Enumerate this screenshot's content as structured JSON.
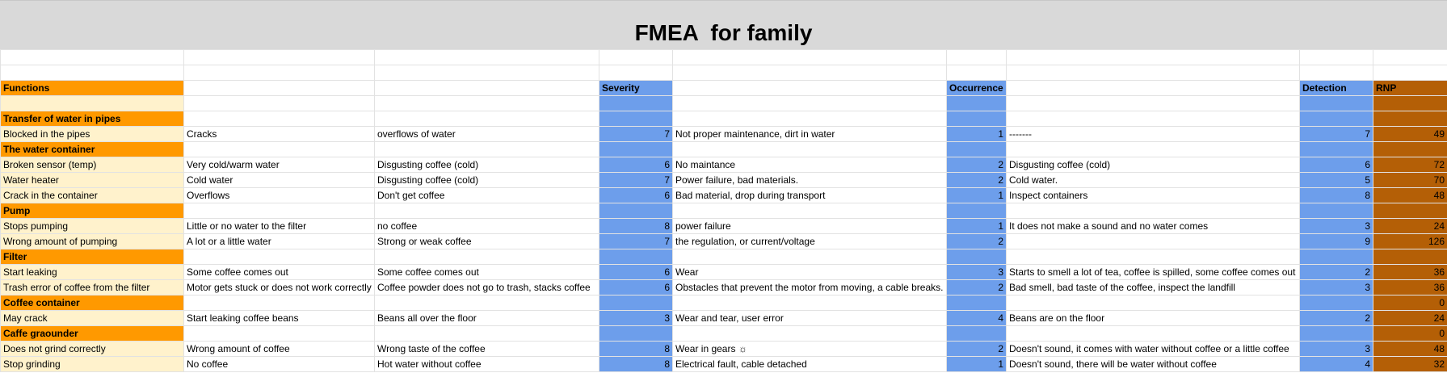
{
  "title": "FMEA  for family",
  "header": {
    "functions": "Functions",
    "severity": "Severity",
    "occurrence": "Occurrence",
    "detection": "Detection",
    "rnp": "RNP"
  },
  "rows": [
    {
      "type": "section",
      "function": "Transfer of water in pipes",
      "rnp": ""
    },
    {
      "type": "item",
      "function": "Blocked in the pipes",
      "failure": "Cracks",
      "effect": "overflows of water",
      "severity": "7",
      "cause": "Not proper maintenance, dirt in water",
      "occurrence": "1",
      "detection_method": "-------",
      "detection": "7",
      "rnp": "49"
    },
    {
      "type": "section",
      "function": "The water container",
      "rnp": ""
    },
    {
      "type": "item",
      "function": "Broken sensor (temp)",
      "failure": "Very cold/warm water",
      "effect": "Disgusting coffee (cold)",
      "severity": "6",
      "cause": "No maintance",
      "occurrence": "2",
      "detection_method": "Disgusting coffee (cold)",
      "detection": "6",
      "rnp": "72"
    },
    {
      "type": "item",
      "function": "Water heater",
      "failure": "Cold water",
      "effect": "Disgusting coffee (cold)",
      "severity": "7",
      "cause": "Power failure, bad materials.",
      "occurrence": "2",
      "detection_method": "Cold water.",
      "detection": "5",
      "rnp": "70"
    },
    {
      "type": "item",
      "function": "Crack in the container",
      "failure": "Overflows",
      "effect": "Don't get coffee",
      "severity": "6",
      "cause": "Bad material, drop during transport",
      "occurrence": "1",
      "detection_method": "Inspect containers",
      "detection": "8",
      "rnp": "48"
    },
    {
      "type": "section",
      "function": "Pump",
      "rnp": ""
    },
    {
      "type": "item",
      "function": "Stops pumping",
      "failure": "Little or no water to the filter",
      "effect": "no coffee",
      "severity": "8",
      "cause": "power failure",
      "occurrence": "1",
      "detection_method": "It does not make a sound and no water comes",
      "detection": "3",
      "rnp": "24"
    },
    {
      "type": "item",
      "function": "Wrong amount of pumping",
      "failure": "A lot or a little water",
      "effect": "Strong or weak coffee",
      "severity": "7",
      "cause": "the regulation, or current/voltage",
      "occurrence": "2",
      "detection_method": "",
      "detection": "9",
      "rnp": "126"
    },
    {
      "type": "section",
      "function": "Filter",
      "rnp": ""
    },
    {
      "type": "item",
      "function": "Start leaking",
      "failure": "Some coffee comes out",
      "effect": "Some coffee comes out",
      "severity": "6",
      "cause": "Wear",
      "occurrence": "3",
      "detection_method": "Starts to smell a lot of tea, coffee is spilled, some coffee comes out",
      "detection": "2",
      "rnp": "36"
    },
    {
      "type": "item",
      "function": "Trash error of coffee from the filter",
      "failure": "Motor gets stuck or does not work correctly",
      "effect": "Coffee powder does not go to trash, stacks coffee",
      "severity": "6",
      "cause": "Obstacles that prevent the motor from moving, a cable breaks.",
      "occurrence": "2",
      "detection_method": "Bad smell, bad taste of the coffee, inspect the landfill",
      "detection": "3",
      "rnp": "36"
    },
    {
      "type": "section",
      "function": "Coffee container",
      "rnp": "0"
    },
    {
      "type": "item",
      "function": "May crack",
      "failure": "Start leaking coffee beans",
      "effect": "Beans all over the floor",
      "severity": "3",
      "cause": "Wear and tear, user error",
      "occurrence": "4",
      "detection_method": "Beans are on the floor",
      "detection": "2",
      "rnp": "24"
    },
    {
      "type": "section",
      "function": "Caffe graounder",
      "rnp": "0"
    },
    {
      "type": "item",
      "function": "Does not grind correctly",
      "failure": "Wrong amount of coffee",
      "effect": "Wrong taste of the coffee",
      "severity": "8",
      "cause": "Wear in gears ☼",
      "occurrence": "2",
      "detection_method": "Doesn't sound, it comes with water without coffee or a little coffee",
      "detection": "3",
      "rnp": "48"
    },
    {
      "type": "item",
      "function": "Stop grinding",
      "failure": "No coffee",
      "effect": "Hot water without coffee",
      "severity": "8",
      "cause": "Electrical fault, cable detached",
      "occurrence": "1",
      "detection_method": "Doesn't sound, there will be water without coffee",
      "detection": "4",
      "rnp": "32"
    }
  ],
  "colors": {
    "title_band": "#d9d9d9",
    "function_section": "#ff9900",
    "function_cell": "#fff2cc",
    "severity_occurrence_detection": "#6d9eeb",
    "rnp": "#b45f06"
  }
}
